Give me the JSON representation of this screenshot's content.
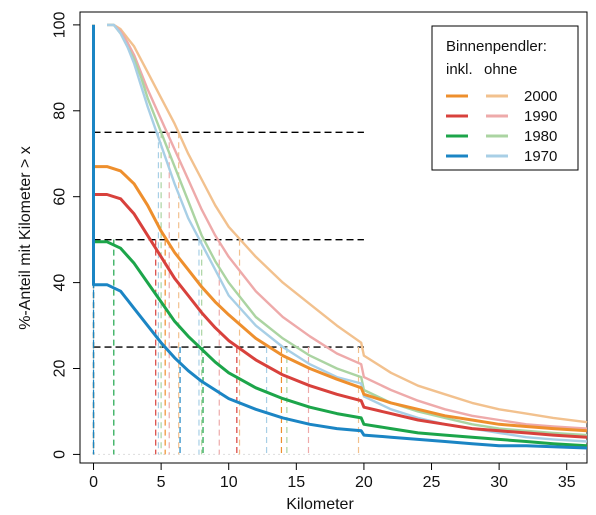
{
  "chart_data": {
    "type": "line",
    "title": "",
    "xlabel": "Kilometer",
    "ylabel": "%-Anteil mit Kilometer > x",
    "xlim": [
      -1,
      36.5
    ],
    "ylim": [
      -2,
      103
    ],
    "x_ticks": [
      0,
      5,
      10,
      15,
      20,
      25,
      30,
      35
    ],
    "y_ticks": [
      0,
      20,
      40,
      60,
      80,
      100
    ],
    "grid": false,
    "legend": {
      "position": "top-right",
      "title": "Binnenpendler:",
      "col_inkl": "inkl.",
      "col_ohne": "ohne",
      "entries": [
        "2000",
        "1990",
        "1980",
        "1970"
      ]
    },
    "reference_lines_y": [
      75,
      50,
      25
    ],
    "series": [
      {
        "name": "2000",
        "variant": "ohne",
        "color": "#f2c18e",
        "x": [
          1,
          1.5,
          2,
          2.5,
          3,
          3.5,
          4,
          5,
          6,
          7,
          8,
          9,
          10,
          12,
          14,
          16,
          18,
          19.8,
          20,
          22,
          24,
          26,
          28,
          30,
          32,
          34,
          36.5
        ],
        "y": [
          100,
          100,
          99,
          97,
          95,
          92,
          89,
          83,
          77,
          70,
          64,
          58,
          53,
          46,
          40,
          35,
          30,
          26,
          23,
          19,
          16,
          14,
          12,
          10.5,
          9.5,
          8.5,
          7.5
        ],
        "quartile_x": [
          6.3,
          10.8,
          19.6
        ]
      },
      {
        "name": "1990",
        "variant": "ohne",
        "color": "#eeaaaa",
        "x": [
          1,
          1.5,
          2,
          2.5,
          3,
          3.5,
          4,
          5,
          6,
          7,
          8,
          9,
          10,
          12,
          14,
          16,
          18,
          19.8,
          20,
          22,
          24,
          26,
          28,
          30,
          32,
          34,
          36.5
        ],
        "y": [
          100,
          100,
          98.5,
          96,
          93,
          89,
          85,
          78,
          71,
          64,
          57,
          51,
          46,
          38,
          32,
          27.5,
          23.5,
          21,
          18,
          15,
          12.5,
          10.5,
          9,
          8,
          7,
          6.5,
          6
        ],
        "quartile_x": [
          5.6,
          9.3,
          15.9
        ]
      },
      {
        "name": "1980",
        "variant": "ohne",
        "color": "#abd4a2",
        "x": [
          1,
          1.5,
          2,
          2.5,
          3,
          3.5,
          4,
          5,
          6,
          7,
          8,
          9,
          10,
          12,
          14,
          16,
          18,
          19.8,
          20,
          22,
          24,
          26,
          28,
          30,
          32,
          34,
          36.5
        ],
        "y": [
          100,
          100,
          98,
          95,
          92,
          88,
          83,
          75,
          67,
          59,
          51,
          45,
          40,
          32,
          27,
          23,
          20,
          18,
          15,
          12,
          10,
          8.5,
          7,
          6,
          5.5,
          5,
          4.5
        ],
        "quartile_x": [
          5,
          8,
          14.3
        ]
      },
      {
        "name": "1970",
        "variant": "ohne",
        "color": "#a8cfe6",
        "x": [
          1,
          1.5,
          2,
          2.5,
          3,
          3.5,
          4,
          5,
          6,
          7,
          8,
          9,
          10,
          12,
          14,
          16,
          18,
          19.8,
          20,
          22,
          24,
          26,
          28,
          30,
          32,
          34,
          36.5
        ],
        "y": [
          100,
          100,
          98,
          95,
          91,
          86,
          81,
          72,
          63,
          55,
          49,
          43,
          37,
          30,
          25,
          21,
          18,
          16.5,
          13.5,
          10.5,
          8.5,
          7,
          6,
          5,
          4,
          3.5,
          3
        ],
        "quartile_x": [
          4.8,
          7.8,
          12.8
        ]
      },
      {
        "name": "2000",
        "variant": "inkl.",
        "color": "#ee8f2d",
        "x": [
          0,
          0,
          1,
          2,
          3,
          4,
          5,
          6,
          7,
          8,
          9,
          10,
          12,
          14,
          16,
          18,
          19.8,
          20,
          22,
          24,
          26,
          28,
          30,
          32,
          34,
          36.5
        ],
        "y": [
          100,
          67,
          67,
          66,
          63,
          58,
          52,
          47,
          43,
          39,
          35.5,
          32.5,
          27,
          23,
          20,
          17.5,
          15.5,
          14,
          12,
          10.5,
          9,
          8,
          7,
          6.5,
          6,
          5.5
        ],
        "quartile_x": [
          0,
          5.3,
          13.9
        ]
      },
      {
        "name": "1990",
        "variant": "inkl.",
        "color": "#d8413c",
        "x": [
          0,
          0,
          1,
          2,
          3,
          4,
          5,
          6,
          7,
          8,
          9,
          10,
          12,
          14,
          16,
          18,
          19.8,
          20,
          22,
          24,
          26,
          28,
          30,
          32,
          34,
          36.5
        ],
        "y": [
          100,
          60.5,
          60.5,
          59.5,
          56,
          51,
          46,
          41,
          37,
          33,
          29.5,
          26.5,
          22,
          18.5,
          16,
          14,
          12.5,
          11,
          9.5,
          8,
          7,
          6,
          5.5,
          5,
          4.5,
          4
        ],
        "quartile_x": [
          0,
          4.6,
          10.6
        ]
      },
      {
        "name": "1980",
        "variant": "inkl.",
        "color": "#1ca54a",
        "x": [
          0,
          0,
          1,
          2,
          3,
          4,
          5,
          6,
          7,
          8,
          9,
          10,
          12,
          14,
          16,
          18,
          19.8,
          20,
          22,
          24,
          26,
          28,
          30,
          32,
          34,
          36.5
        ],
        "y": [
          100,
          49.5,
          49.5,
          48,
          44.5,
          40,
          35.5,
          31,
          27.5,
          24.5,
          21.5,
          19,
          15.5,
          13,
          11,
          9.5,
          8.5,
          7,
          6,
          5,
          4.5,
          4,
          3.5,
          3,
          2.5,
          2
        ],
        "quartile_x": [
          0,
          1.5,
          8.1
        ]
      },
      {
        "name": "1970",
        "variant": "inkl.",
        "color": "#1b85c4",
        "x": [
          0,
          0,
          1,
          2,
          3,
          4,
          5,
          6,
          7,
          8,
          9,
          10,
          12,
          14,
          16,
          18,
          19.8,
          20,
          22,
          24,
          26,
          28,
          30,
          32,
          34,
          36.5
        ],
        "y": [
          100,
          39.5,
          39.5,
          38,
          34,
          30,
          26,
          22.5,
          19.5,
          17,
          15,
          13,
          10.5,
          8.5,
          7,
          6,
          5.5,
          4.5,
          4,
          3.5,
          3,
          2.5,
          2,
          2,
          1.8,
          1.5
        ],
        "quartile_x": [
          0,
          0,
          6.4
        ]
      }
    ]
  }
}
